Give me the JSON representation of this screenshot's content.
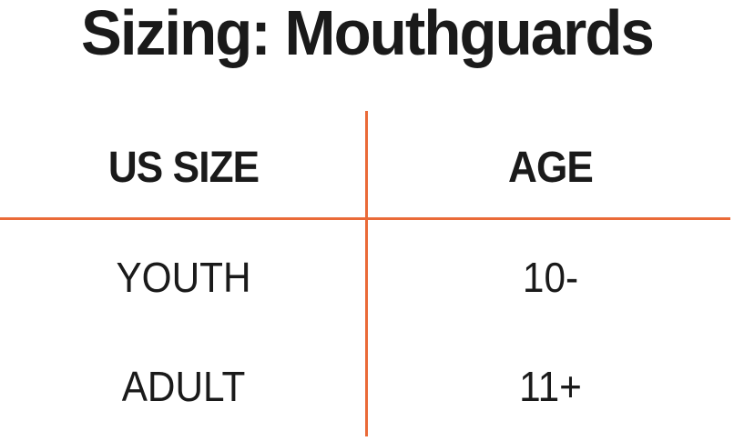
{
  "title": "Sizing: Mouthguards",
  "chart_data": {
    "type": "table",
    "title": "Sizing: Mouthguards",
    "columns": [
      "US SIZE",
      "AGE"
    ],
    "rows": [
      [
        "YOUTH",
        "10-"
      ],
      [
        "ADULT",
        "11+"
      ]
    ],
    "layout": {
      "divider_style": "orange vertical divider between columns and horizontal divider under header row",
      "column_alignment": "center"
    }
  },
  "colors": {
    "accent": "#EA6A38",
    "text": "#1A1A1A",
    "background": "#FFFFFF"
  }
}
